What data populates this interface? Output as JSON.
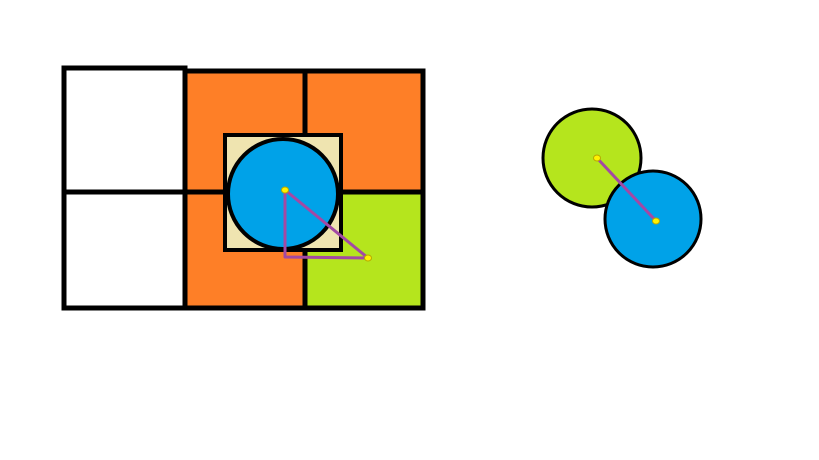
{
  "colors": {
    "background": "#ffffff",
    "outline": "#000000",
    "orange": "#fe7f27",
    "lime": "#b5e51d",
    "blue": "#00a2e8",
    "cream": "#efe4b0",
    "purple": "#a349a4",
    "yellow_dot": "#fff200",
    "white_cell": "#ffffff"
  },
  "diagram": {
    "grid": {
      "rows": 2,
      "cols": 3,
      "cells": [
        {
          "row": 0,
          "col": 0,
          "fill": "white"
        },
        {
          "row": 0,
          "col": 1,
          "fill": "orange"
        },
        {
          "row": 0,
          "col": 2,
          "fill": "orange"
        },
        {
          "row": 1,
          "col": 0,
          "fill": "white"
        },
        {
          "row": 1,
          "col": 1,
          "fill": "orange"
        },
        {
          "row": 1,
          "col": 2,
          "fill": "lime"
        }
      ]
    },
    "inner_square_fill": "cream",
    "grid_circle_fill": "blue",
    "triangle_stroke": "purple",
    "point_fill": "yellow_dot",
    "overlap_pair": {
      "first_circle_fill": "lime",
      "second_circle_fill": "blue",
      "connector_stroke": "purple"
    }
  }
}
